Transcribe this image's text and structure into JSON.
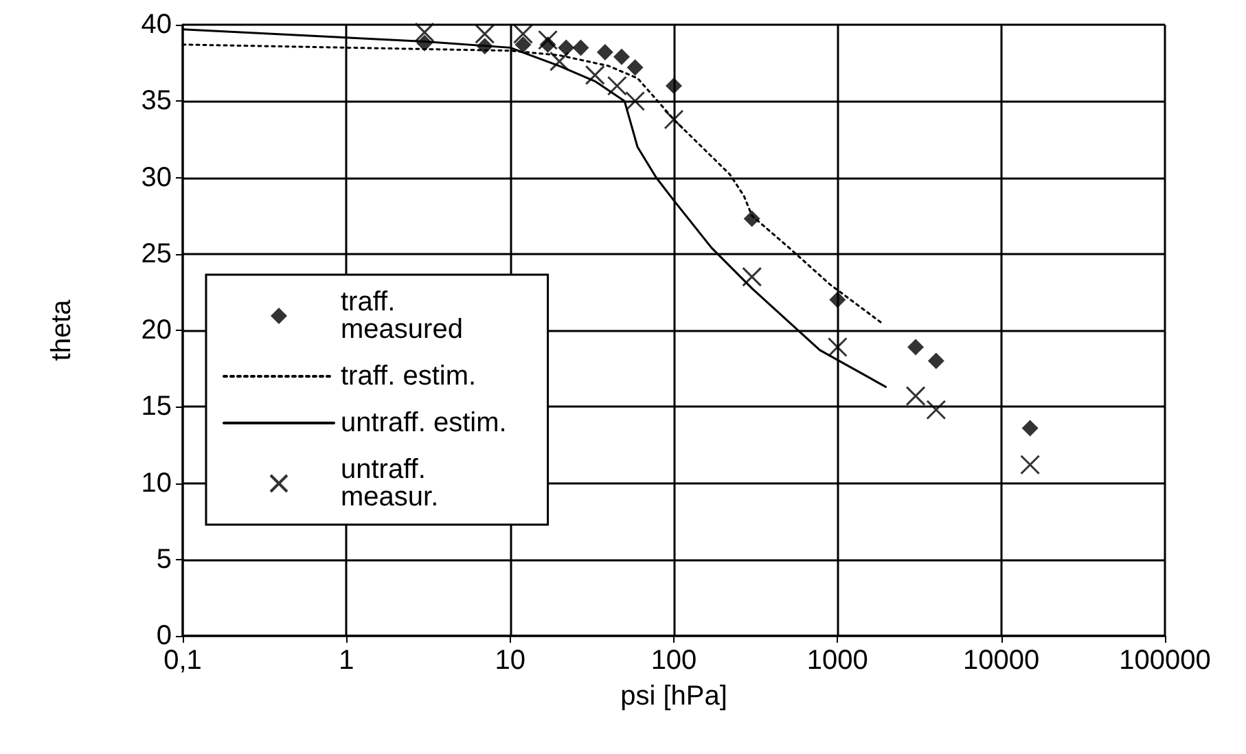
{
  "chart_data": {
    "type": "scatter",
    "xlabel": "psi [hPa]",
    "ylabel": "theta",
    "log": "x",
    "grid": true,
    "legend": "left",
    "xlim": [
      0.1,
      100000
    ],
    "xticks": [
      {
        "value": 0.1,
        "label": "0,1"
      },
      1,
      10,
      100,
      1000,
      10000,
      100000
    ],
    "ylim": [
      0,
      40
    ],
    "yticks": [
      0,
      5,
      10,
      15,
      20,
      25,
      30,
      35,
      40
    ],
    "series": [
      {
        "name": "traff. measured",
        "marker": "diamond",
        "color": "#000000",
        "x": [
          3,
          7,
          12,
          17,
          22,
          27,
          38,
          48,
          58,
          100,
          300,
          1000,
          3000,
          4000,
          15000
        ],
        "values": [
          38.8,
          38.6,
          38.7,
          38.7,
          38.5,
          38.5,
          38.2,
          37.9,
          37.2,
          36.0,
          27.3,
          22.0,
          18.9,
          18.0,
          13.6
        ]
      },
      {
        "name": "traff. estim.",
        "type": "line",
        "marker": "none",
        "line_style": "dotted",
        "color": "#000000",
        "x": [
          0.1,
          1,
          10,
          20,
          40,
          60,
          100,
          220,
          268,
          300,
          506,
          900,
          1850
        ],
        "values": [
          38.7,
          38.5,
          38.3,
          38.0,
          37.3,
          36.5,
          33.8,
          30.2,
          28.8,
          27.5,
          25.4,
          23.0,
          20.5
        ]
      },
      {
        "name": "untraff. estim.",
        "type": "line",
        "marker": "none",
        "line_style": "solid",
        "color": "#000000",
        "x": [
          0.1,
          3,
          10,
          20,
          33,
          50,
          60,
          78,
          100,
          170,
          303,
          780,
          1970
        ],
        "values": [
          39.7,
          38.9,
          38.5,
          37.3,
          36.3,
          35.0,
          32.0,
          30.0,
          28.5,
          25.4,
          22.7,
          18.7,
          16.3
        ]
      },
      {
        "name": "untraff. measur.",
        "marker": "cross",
        "color": "#000000",
        "x": [
          3,
          7,
          12,
          17,
          20,
          33,
          45,
          58,
          100,
          300,
          1000,
          3000,
          4000,
          15000
        ],
        "values": [
          39.5,
          39.4,
          39.4,
          39.0,
          37.6,
          36.7,
          36.0,
          35.0,
          33.8,
          23.5,
          18.9,
          15.7,
          14.8,
          11.2
        ]
      }
    ]
  }
}
